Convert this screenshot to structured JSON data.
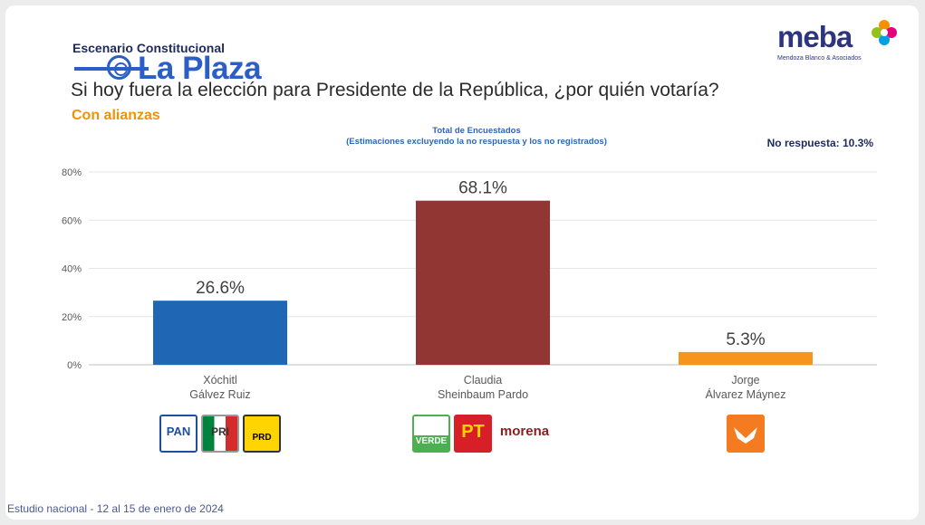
{
  "header": {
    "scenario": "Escenario Constitucional",
    "question": "Si hoy fuera la elección para Presidente de la República, ¿por quién votaría?",
    "subtitle": "Con alianzas"
  },
  "watermark": {
    "text": "La Plaza"
  },
  "brand": {
    "name": "meba",
    "tagline": "Mendoza Blanco & Asociados"
  },
  "no_response": "No respuesta: 10.3%",
  "footer": "Estudio nacional - 12 al 15 de enero de 2024",
  "candidates": [
    {
      "first": "Xóchitl",
      "last": "Gálvez Ruiz",
      "parties": [
        "PAN",
        "PRI",
        "PRD"
      ]
    },
    {
      "first": "Claudia",
      "last": "Sheinbaum Pardo",
      "parties": [
        "VERDE",
        "PT",
        "morena"
      ]
    },
    {
      "first": "Jorge",
      "last": "Álvarez Máynez",
      "parties": [
        "MC"
      ]
    }
  ],
  "chart_data": {
    "type": "bar",
    "title": "Total de Encuestados",
    "subtitle": "(Estimaciones excluyendo la no respuesta y los no registrados)",
    "categories": [
      "Xóchitl Gálvez Ruiz",
      "Claudia Sheinbaum Pardo",
      "Jorge Álvarez Máynez"
    ],
    "values": [
      26.6,
      68.1,
      5.3
    ],
    "value_labels": [
      "26.6%",
      "68.1%",
      "5.3%"
    ],
    "colors": [
      "#1f66b5",
      "#913633",
      "#f7941d"
    ],
    "ylim": [
      0,
      80
    ],
    "yticks": [
      0,
      20,
      40,
      60,
      80
    ],
    "ytick_labels": [
      "0%",
      "20%",
      "40%",
      "60%",
      "80%"
    ],
    "grid": true,
    "legend": "none"
  }
}
